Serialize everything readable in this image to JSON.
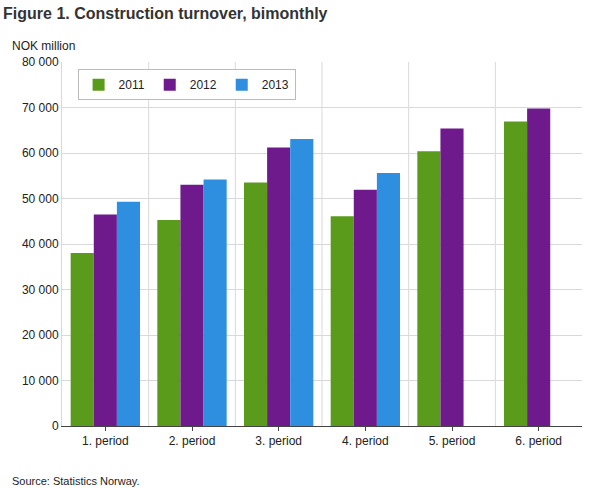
{
  "chart_data": {
    "type": "bar",
    "title": "Figure 1. Construction turnover, bimonthly",
    "ylabel": "NOK million",
    "source": "Source: Statistics Norway.",
    "categories": [
      "1. period",
      "2. period",
      "3. period",
      "4. period",
      "5. period",
      "6. period"
    ],
    "series": [
      {
        "name": "2011",
        "color": "#5a9b1c",
        "values": [
          38000,
          45300,
          53500,
          46100,
          60400,
          66900
        ]
      },
      {
        "name": "2012",
        "color": "#6e1a8c",
        "values": [
          46500,
          53000,
          61200,
          51900,
          65400,
          69800
        ]
      },
      {
        "name": "2013",
        "color": "#2e8fe0",
        "values": [
          49300,
          54200,
          63100,
          55600,
          null,
          null
        ]
      }
    ],
    "ylim": [
      0,
      80000
    ],
    "yticks": [
      0,
      {
        "value": 10000,
        "label": "10 000"
      },
      {
        "value": 20000,
        "label": "20 000"
      },
      {
        "value": 30000,
        "label": "30 000"
      },
      {
        "value": 40000,
        "label": "40 000"
      },
      {
        "value": 50000,
        "label": "50 000"
      },
      {
        "value": 60000,
        "label": "60 000"
      },
      {
        "value": 70000,
        "label": "70 000"
      },
      {
        "value": 80000,
        "label": "80 000"
      }
    ],
    "grid": true,
    "legend": "upper left"
  }
}
